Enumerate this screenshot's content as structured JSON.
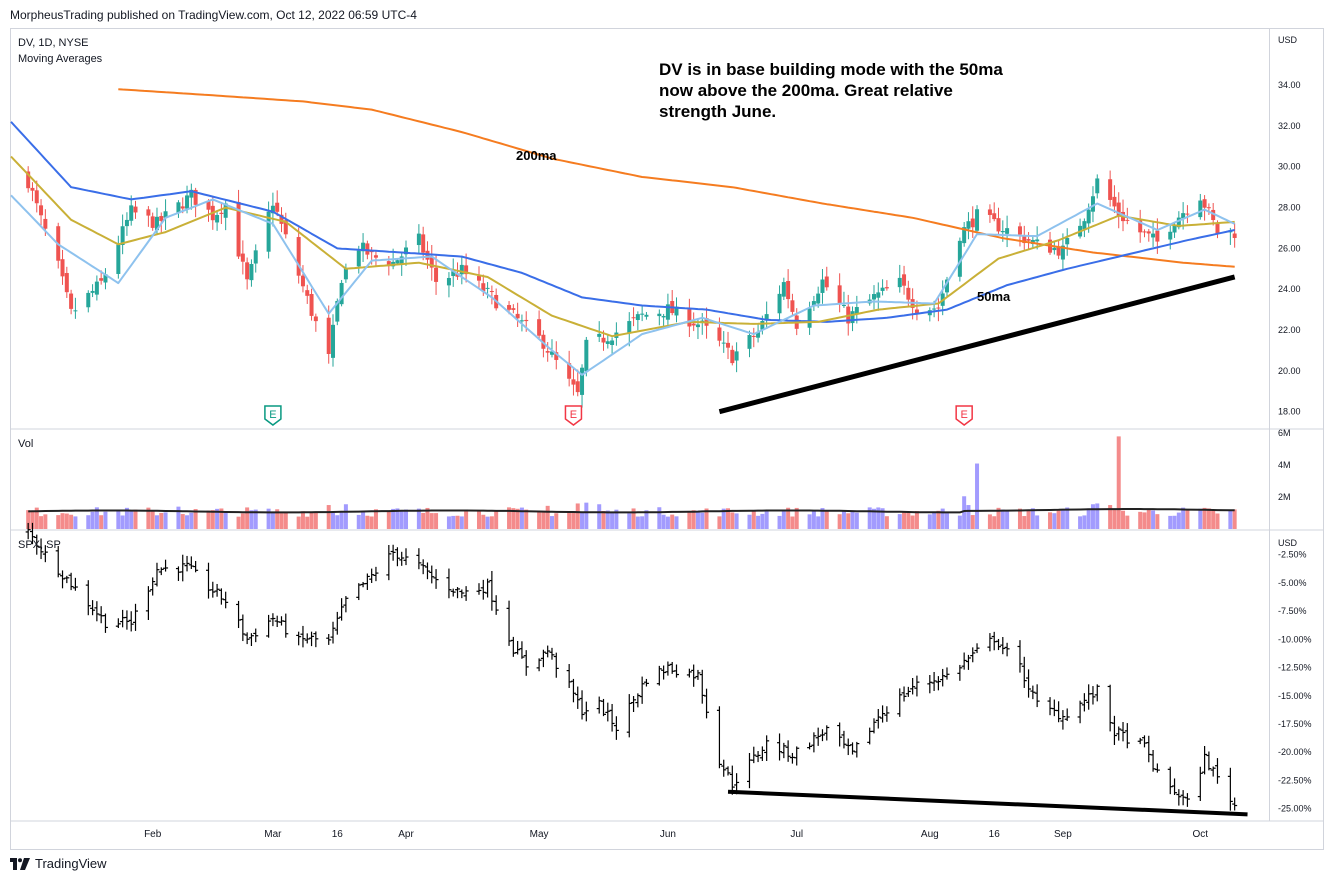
{
  "publisher": "MorpheusTrading published on TradingView.com, Oct 12, 2022 06:59 UTC-4",
  "brand": {
    "name": "TradingView",
    "icon": "tradingview-logo-icon"
  },
  "colors": {
    "up": "#26a69a",
    "down": "#ef5350",
    "vol_up": "#a29bfe",
    "vol_down": "#f48b8b",
    "ma200": "#f57c20",
    "ma50": "#3a6ee8",
    "ma20": "#c9b037",
    "ma10": "#8ec2ee",
    "trendline": "#000000",
    "grid": "#eeeff3"
  },
  "chart_data": [
    {
      "type": "candlestick",
      "symbol": "DV, 1D, NYSE",
      "indicator": "Moving Averages",
      "currency": "USD",
      "ylim": [
        17.2,
        36.7
      ],
      "y_ticks": [
        "34.00",
        "32.00",
        "30.00",
        "28.00",
        "26.00",
        "24.00",
        "22.00",
        "20.00",
        "18.00"
      ],
      "x_ticks": [
        "Feb",
        "Mar",
        "16",
        "Apr",
        "May",
        "Jun",
        "Jul",
        "Aug",
        "16",
        "Sep",
        "Oct"
      ],
      "close_anchors": [
        [
          "2022-01-03",
          29.3
        ],
        [
          "2022-01-06",
          27.4
        ],
        [
          "2022-01-10",
          25.1
        ],
        [
          "2022-01-13",
          22.8
        ],
        [
          "2022-01-20",
          24.3
        ],
        [
          "2022-01-27",
          27.8
        ],
        [
          "2022-02-02",
          27.2
        ],
        [
          "2022-02-10",
          28.6
        ],
        [
          "2022-02-15",
          27.6
        ],
        [
          "2022-02-18",
          28.2
        ],
        [
          "2022-02-23",
          24.3
        ],
        [
          "2022-03-01",
          28.3
        ],
        [
          "2022-03-04",
          26.5
        ],
        [
          "2022-03-10",
          22.9
        ],
        [
          "2022-03-14",
          20.6
        ],
        [
          "2022-03-17",
          24.6
        ],
        [
          "2022-03-21",
          26.1
        ],
        [
          "2022-03-24",
          25.6
        ],
        [
          "2022-03-29",
          25.3
        ],
        [
          "2022-04-04",
          26.4
        ],
        [
          "2022-04-08",
          24.4
        ],
        [
          "2022-04-14",
          24.9
        ],
        [
          "2022-04-21",
          23.6
        ],
        [
          "2022-04-28",
          22.3
        ],
        [
          "2022-05-03",
          21.4
        ],
        [
          "2022-05-09",
          19.4
        ],
        [
          "2022-05-11",
          18.8
        ],
        [
          "2022-05-13",
          21.2
        ],
        [
          "2022-05-20",
          21.9
        ],
        [
          "2022-05-26",
          22.7
        ],
        [
          "2022-06-01",
          23.0
        ],
        [
          "2022-06-09",
          22.2
        ],
        [
          "2022-06-16",
          20.7
        ],
        [
          "2022-06-22",
          21.9
        ],
        [
          "2022-06-28",
          24.3
        ],
        [
          "2022-07-01",
          22.3
        ],
        [
          "2022-07-07",
          24.4
        ],
        [
          "2022-07-13",
          22.6
        ],
        [
          "2022-07-19",
          23.6
        ],
        [
          "2022-07-25",
          24.3
        ],
        [
          "2022-07-29",
          23.1
        ],
        [
          "2022-08-03",
          23.1
        ],
        [
          "2022-08-08",
          26.7
        ],
        [
          "2022-08-12",
          27.6
        ],
        [
          "2022-08-19",
          26.9
        ],
        [
          "2022-08-26",
          26.2
        ],
        [
          "2022-09-01",
          25.9
        ],
        [
          "2022-09-06",
          27.6
        ],
        [
          "2022-09-09",
          29.3
        ],
        [
          "2022-09-14",
          27.7
        ],
        [
          "2022-09-19",
          26.8
        ],
        [
          "2022-09-23",
          26.3
        ],
        [
          "2022-09-27",
          27.4
        ],
        [
          "2022-10-03",
          28.6
        ],
        [
          "2022-10-07",
          26.8
        ]
      ],
      "moving_averages": [
        {
          "name": "200ma",
          "color": "#f57c20",
          "points": [
            [
              "2022-01-24",
              33.8
            ],
            [
              "2022-02-15",
              33.5
            ],
            [
              "2022-03-08",
              33.2
            ],
            [
              "2022-03-24",
              32.8
            ],
            [
              "2022-04-14",
              31.7
            ],
            [
              "2022-05-05",
              30.4
            ],
            [
              "2022-05-26",
              29.5
            ],
            [
              "2022-06-16",
              29.0
            ],
            [
              "2022-07-07",
              28.2
            ],
            [
              "2022-07-28",
              27.5
            ],
            [
              "2022-08-18",
              26.5
            ],
            [
              "2022-09-08",
              25.8
            ],
            [
              "2022-09-29",
              25.3
            ],
            [
              "2022-10-11",
              25.1
            ]
          ]
        },
        {
          "name": "50ma",
          "color": "#3a6ee8",
          "points": [
            [
              "2021-12-30",
              32.2
            ],
            [
              "2022-01-13",
              29.0
            ],
            [
              "2022-01-27",
              28.4
            ],
            [
              "2022-02-10",
              28.8
            ],
            [
              "2022-03-01",
              27.8
            ],
            [
              "2022-03-16",
              26.0
            ],
            [
              "2022-03-31",
              25.8
            ],
            [
              "2022-04-14",
              25.6
            ],
            [
              "2022-04-28",
              24.8
            ],
            [
              "2022-05-12",
              23.6
            ],
            [
              "2022-05-26",
              23.2
            ],
            [
              "2022-06-10",
              23.0
            ],
            [
              "2022-06-24",
              22.5
            ],
            [
              "2022-07-08",
              22.4
            ],
            [
              "2022-07-22",
              22.6
            ],
            [
              "2022-08-05",
              23.0
            ],
            [
              "2022-08-19",
              24.2
            ],
            [
              "2022-09-02",
              25.0
            ],
            [
              "2022-09-16",
              25.7
            ],
            [
              "2022-09-30",
              26.4
            ],
            [
              "2022-10-11",
              26.9
            ]
          ]
        },
        {
          "name": "20ma",
          "color": "#c9b037",
          "points": [
            [
              "2021-12-30",
              30.5
            ],
            [
              "2022-01-13",
              27.4
            ],
            [
              "2022-01-24",
              26.2
            ],
            [
              "2022-02-04",
              26.8
            ],
            [
              "2022-02-18",
              28.0
            ],
            [
              "2022-03-04",
              27.3
            ],
            [
              "2022-03-18",
              25.0
            ],
            [
              "2022-04-04",
              25.3
            ],
            [
              "2022-04-20",
              24.6
            ],
            [
              "2022-05-05",
              22.7
            ],
            [
              "2022-05-19",
              21.7
            ],
            [
              "2022-06-06",
              22.4
            ],
            [
              "2022-06-21",
              22.3
            ],
            [
              "2022-07-06",
              22.4
            ],
            [
              "2022-07-20",
              23.0
            ],
            [
              "2022-08-03",
              23.3
            ],
            [
              "2022-08-17",
              25.5
            ],
            [
              "2022-08-31",
              26.4
            ],
            [
              "2022-09-14",
              27.6
            ],
            [
              "2022-09-28",
              27.1
            ],
            [
              "2022-10-11",
              27.3
            ]
          ]
        },
        {
          "name": "10ma",
          "color": "#8ec2ee",
          "points": [
            [
              "2021-12-30",
              28.6
            ],
            [
              "2022-01-10",
              26.2
            ],
            [
              "2022-01-24",
              24.3
            ],
            [
              "2022-02-04",
              27.5
            ],
            [
              "2022-02-15",
              28.4
            ],
            [
              "2022-03-01",
              27.2
            ],
            [
              "2022-03-14",
              22.8
            ],
            [
              "2022-03-24",
              25.4
            ],
            [
              "2022-04-07",
              25.6
            ],
            [
              "2022-04-21",
              23.6
            ],
            [
              "2022-05-05",
              21.0
            ],
            [
              "2022-05-12",
              19.8
            ],
            [
              "2022-05-26",
              21.8
            ],
            [
              "2022-06-09",
              22.6
            ],
            [
              "2022-06-21",
              21.8
            ],
            [
              "2022-07-05",
              23.2
            ],
            [
              "2022-07-19",
              23.4
            ],
            [
              "2022-08-02",
              23.3
            ],
            [
              "2022-08-12",
              26.7
            ],
            [
              "2022-08-26",
              26.6
            ],
            [
              "2022-09-09",
              28.2
            ],
            [
              "2022-09-23",
              26.9
            ],
            [
              "2022-10-04",
              27.9
            ],
            [
              "2022-10-11",
              27.2
            ]
          ]
        }
      ],
      "earnings_markers": [
        {
          "date": "2022-03-01",
          "label": "E",
          "color": "#089981"
        },
        {
          "date": "2022-05-10",
          "label": "E",
          "color": "#f23645"
        },
        {
          "date": "2022-08-09",
          "label": "E",
          "color": "#f23645"
        }
      ],
      "trendline": {
        "from": [
          "2022-06-13",
          18.0
        ],
        "to": [
          "2022-10-11",
          24.6
        ]
      },
      "annotations": [
        {
          "text": "DV is in base building mode with the 50ma now above the 200ma.  Great relative strength June."
        },
        {
          "text": "200ma"
        },
        {
          "text": "50ma"
        }
      ]
    },
    {
      "type": "bar",
      "name": "Vol",
      "ylim": [
        0,
        6200000
      ],
      "y_ticks": [
        "6M",
        "4M",
        "2M"
      ],
      "baseline_avg": 1100000,
      "spikes": [
        {
          "date": "2022-02-07",
          "value": 1400000
        },
        {
          "date": "2022-03-14",
          "value": 1500000
        },
        {
          "date": "2022-03-18",
          "value": 1550000
        },
        {
          "date": "2022-05-04",
          "value": 1450000
        },
        {
          "date": "2022-05-11",
          "value": 1600000
        },
        {
          "date": "2022-05-13",
          "value": 1650000
        },
        {
          "date": "2022-05-16",
          "value": 1550000
        },
        {
          "date": "2022-08-09",
          "value": 2050000
        },
        {
          "date": "2022-08-10",
          "value": 1500000
        },
        {
          "date": "2022-08-12",
          "value": 4100000
        },
        {
          "date": "2022-09-08",
          "value": 1550000
        },
        {
          "date": "2022-09-09",
          "value": 1600000
        },
        {
          "date": "2022-09-12",
          "value": 1500000
        },
        {
          "date": "2022-09-14",
          "value": 5800000
        }
      ]
    },
    {
      "type": "ohlc",
      "symbol": "SPX, SP",
      "currency": "USD",
      "ylim": [
        -26.0,
        -0.5
      ],
      "y_ticks": [
        "-2.50%",
        "-5.00%",
        "-7.50%",
        "-10.00%",
        "-12.50%",
        "-15.00%",
        "-17.50%",
        "-20.00%",
        "-22.50%",
        "-25.00%"
      ],
      "close_anchors": [
        [
          "2022-01-03",
          -0.5
        ],
        [
          "2022-01-07",
          -2.5
        ],
        [
          "2022-01-14",
          -5.5
        ],
        [
          "2022-01-21",
          -8.5
        ],
        [
          "2022-01-27",
          -8.5
        ],
        [
          "2022-02-02",
          -3.8
        ],
        [
          "2022-02-09",
          -3.6
        ],
        [
          "2022-02-14",
          -5.4
        ],
        [
          "2022-02-18",
          -6.6
        ],
        [
          "2022-02-23",
          -10.0
        ],
        [
          "2022-03-01",
          -8.1
        ],
        [
          "2022-03-07",
          -10.2
        ],
        [
          "2022-03-09",
          -9.9
        ],
        [
          "2022-03-14",
          -10.2
        ],
        [
          "2022-03-18",
          -6.6
        ],
        [
          "2022-03-24",
          -4.4
        ],
        [
          "2022-03-29",
          -2.3
        ],
        [
          "2022-04-04",
          -3.5
        ],
        [
          "2022-04-08",
          -4.8
        ],
        [
          "2022-04-14",
          -5.9
        ],
        [
          "2022-04-20",
          -5.3
        ],
        [
          "2022-04-26",
          -10.8
        ],
        [
          "2022-04-29",
          -12.3
        ],
        [
          "2022-05-04",
          -11.0
        ],
        [
          "2022-05-09",
          -14.2
        ],
        [
          "2022-05-12",
          -16.3
        ],
        [
          "2022-05-16",
          -15.8
        ],
        [
          "2022-05-20",
          -17.8
        ],
        [
          "2022-05-27",
          -13.5
        ],
        [
          "2022-06-01",
          -12.5
        ],
        [
          "2022-06-08",
          -13.2
        ],
        [
          "2022-06-13",
          -20.7
        ],
        [
          "2022-06-16",
          -22.8
        ],
        [
          "2022-06-24",
          -19.2
        ],
        [
          "2022-06-30",
          -20.2
        ],
        [
          "2022-07-08",
          -18.0
        ],
        [
          "2022-07-14",
          -20.2
        ],
        [
          "2022-07-20",
          -16.8
        ],
        [
          "2022-07-28",
          -14.2
        ],
        [
          "2022-08-05",
          -13.2
        ],
        [
          "2022-08-16",
          -9.9
        ],
        [
          "2022-08-22",
          -12.5
        ],
        [
          "2022-08-26",
          -15.8
        ],
        [
          "2022-09-01",
          -16.8
        ],
        [
          "2022-09-09",
          -14.6
        ],
        [
          "2022-09-13",
          -18.2
        ],
        [
          "2022-09-20",
          -19.5
        ],
        [
          "2022-09-23",
          -22.0
        ],
        [
          "2022-09-30",
          -24.5
        ],
        [
          "2022-10-04",
          -20.5
        ],
        [
          "2022-10-07",
          -22.3
        ],
        [
          "2022-10-11",
          -24.7
        ]
      ],
      "trendline": {
        "from": [
          "2022-06-15",
          -23.5
        ],
        "to": [
          "2022-10-14",
          -25.5
        ]
      }
    }
  ]
}
